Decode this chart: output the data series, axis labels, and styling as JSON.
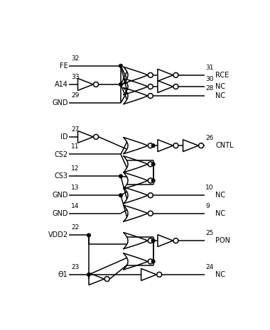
{
  "bg": "#ffffff",
  "lc": "#000000",
  "lw": 1.1,
  "figsize": [
    3.8,
    4.65
  ],
  "dpi": 100,
  "xlim": [
    0,
    380
  ],
  "ylim": [
    0,
    465
  ]
}
